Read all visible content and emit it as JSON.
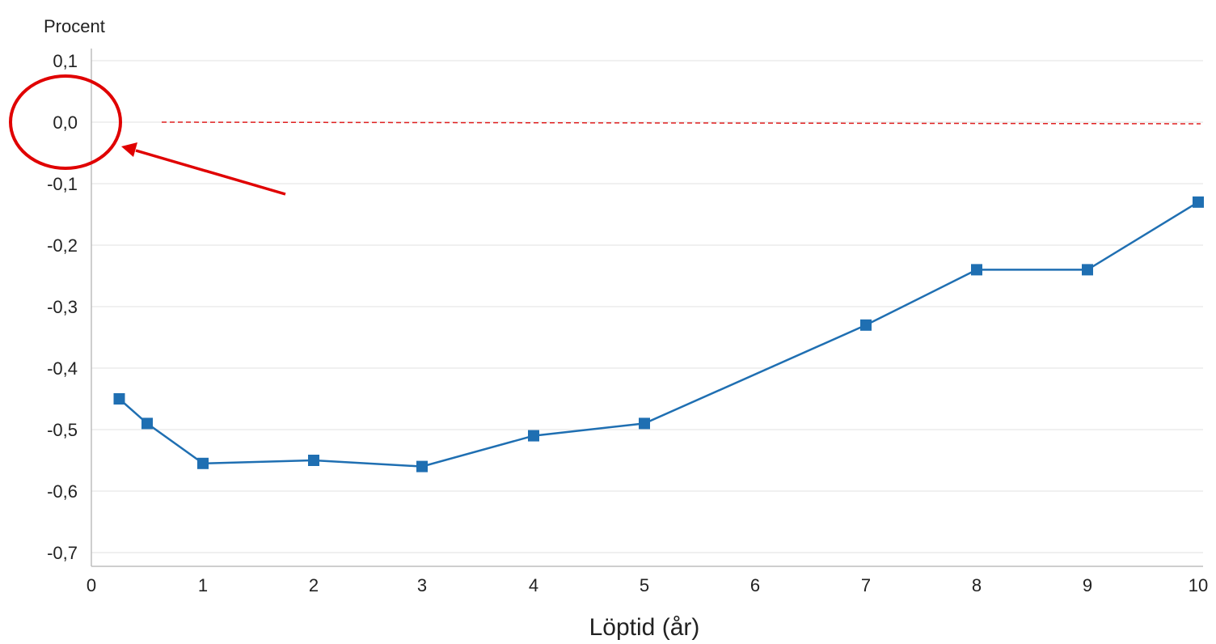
{
  "chart_data": {
    "type": "line",
    "ylabel": "Procent",
    "xlabel": "Löptid (år)",
    "ylim": [
      -0.74,
      0.1
    ],
    "yticks": [
      0.1,
      0.0,
      -0.1,
      -0.2,
      -0.3,
      -0.4,
      -0.5,
      -0.6,
      -0.7
    ],
    "ytick_labels": [
      "0,1",
      "0,0",
      "-0,1",
      "-0,2",
      "-0,3",
      "-0,4",
      "-0,5",
      "-0,6",
      "-0,7"
    ],
    "xtick_labels": [
      "0",
      "1",
      "2",
      "3",
      "4",
      "5",
      "6",
      "7",
      "8",
      "9",
      "10"
    ],
    "grid": true,
    "series": [
      {
        "color": "#1f6fb2",
        "points": [
          {
            "tick": 0.25,
            "y": -0.45
          },
          {
            "tick": 0.5,
            "y": -0.49
          },
          {
            "tick": 1,
            "y": -0.555
          },
          {
            "tick": 2,
            "y": -0.55
          },
          {
            "tick": 3,
            "y": -0.56
          },
          {
            "tick": 4,
            "y": -0.51
          },
          {
            "tick": 5,
            "y": -0.49
          },
          {
            "tick": 7,
            "y": -0.33
          },
          {
            "tick": 8,
            "y": -0.24
          },
          {
            "tick": 9,
            "y": -0.24
          },
          {
            "tick": 10,
            "y": -0.13
          }
        ]
      }
    ],
    "reference_line": {
      "y": 0.0,
      "color": "#e02020",
      "style": "dashed"
    },
    "annotation": {
      "target": "0,0",
      "color": "#e00000",
      "shape": "circle-with-arrow"
    }
  }
}
